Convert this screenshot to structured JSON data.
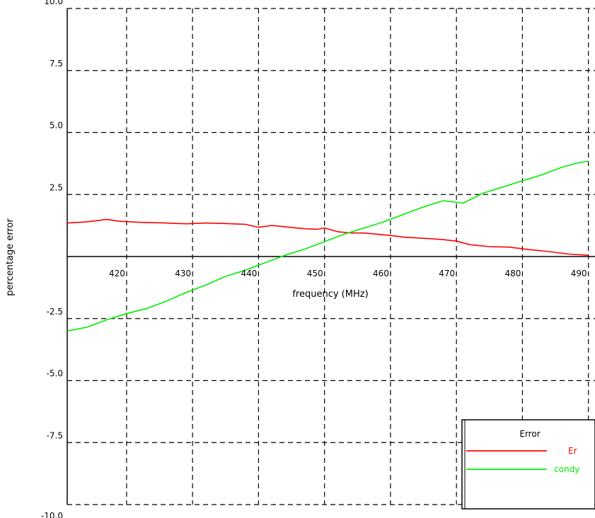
{
  "chart_data": {
    "type": "line",
    "title": "",
    "xlabel": "frequency (MHz)",
    "ylabel": "percentage error",
    "xlim": [
      411,
      491
    ],
    "ylim": [
      -10,
      10
    ],
    "x_ticks": [
      420,
      430,
      440,
      450,
      460,
      470,
      480,
      490
    ],
    "x_tick_labels": [
      "420",
      "430",
      "440",
      "450",
      "460",
      "470",
      "480",
      "490"
    ],
    "y_ticks": [
      10,
      7.5,
      5,
      2.5,
      -2.5,
      -5,
      -7.5,
      -10
    ],
    "y_tick_labels": [
      "10.0",
      "7.5",
      "5.0",
      "2.5",
      "-2.5",
      "-5.0",
      "-7.5",
      "-10.0"
    ],
    "grid": true,
    "grid_style": "dashed",
    "legend": {
      "title": "Error",
      "position": "bottom-right"
    },
    "series": [
      {
        "name": "Er",
        "color": "#ff0000",
        "x": [
          411,
          414,
          417,
          419,
          422,
          426,
          429,
          432,
          435,
          438,
          440,
          442,
          444,
          447,
          449,
          450,
          452,
          454,
          456,
          458,
          460,
          462,
          464,
          466,
          468,
          470,
          472,
          475,
          478,
          481,
          484,
          487,
          490
        ],
        "y": [
          1.35,
          1.4,
          1.5,
          1.42,
          1.38,
          1.35,
          1.32,
          1.35,
          1.33,
          1.3,
          1.18,
          1.25,
          1.2,
          1.12,
          1.1,
          1.15,
          1.0,
          0.95,
          0.95,
          0.9,
          0.85,
          0.78,
          0.75,
          0.72,
          0.68,
          0.62,
          0.48,
          0.4,
          0.38,
          0.28,
          0.2,
          0.1,
          0.05
        ]
      },
      {
        "name": "condy",
        "color": "#00ee00",
        "x": [
          411,
          414,
          417,
          420,
          423,
          426,
          429,
          432,
          435,
          438,
          441,
          444,
          447,
          450,
          453,
          456,
          459,
          462,
          465,
          468,
          471,
          474,
          477,
          480,
          483,
          486,
          488,
          490
        ],
        "y": [
          -3.0,
          -2.85,
          -2.55,
          -2.3,
          -2.1,
          -1.8,
          -1.45,
          -1.15,
          -0.8,
          -0.55,
          -0.25,
          0.05,
          0.3,
          0.6,
          0.9,
          1.15,
          1.4,
          1.7,
          2.0,
          2.25,
          2.15,
          2.55,
          2.8,
          3.05,
          3.3,
          3.6,
          3.75,
          3.85
        ]
      }
    ]
  }
}
